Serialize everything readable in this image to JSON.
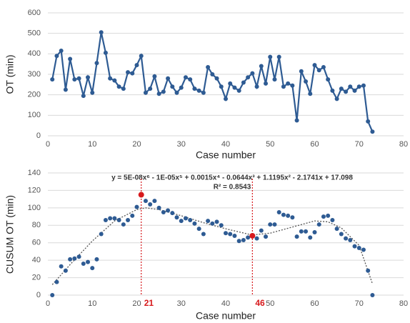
{
  "chart_data": [
    {
      "type": "line",
      "xlabel": "Case number",
      "ylabel": "OT (min)",
      "color": "#2e5b93",
      "grid": true,
      "xlim": [
        0,
        80
      ],
      "xticks": [
        0,
        10,
        20,
        30,
        40,
        50,
        60,
        70,
        80
      ],
      "ylim": [
        0,
        600
      ],
      "yticks": [
        0,
        100,
        200,
        300,
        400,
        500,
        600
      ],
      "x": [
        1,
        2,
        3,
        4,
        5,
        6,
        7,
        8,
        9,
        10,
        11,
        12,
        13,
        14,
        15,
        16,
        17,
        18,
        19,
        20,
        21,
        22,
        23,
        24,
        25,
        26,
        27,
        28,
        29,
        30,
        31,
        32,
        33,
        34,
        35,
        36,
        37,
        38,
        39,
        40,
        41,
        42,
        43,
        44,
        45,
        46,
        47,
        48,
        49,
        50,
        51,
        52,
        53,
        54,
        55,
        56,
        57,
        58,
        59,
        60,
        61,
        62,
        63,
        64,
        65,
        66,
        67,
        68,
        69,
        70,
        71,
        72,
        73
      ],
      "values": [
        275,
        390,
        415,
        225,
        375,
        275,
        280,
        195,
        285,
        210,
        355,
        505,
        405,
        280,
        270,
        240,
        230,
        310,
        305,
        345,
        390,
        210,
        230,
        290,
        205,
        215,
        280,
        240,
        210,
        235,
        285,
        275,
        230,
        220,
        210,
        335,
        300,
        280,
        240,
        180,
        255,
        235,
        220,
        260,
        285,
        305,
        240,
        340,
        255,
        385,
        275,
        385,
        240,
        255,
        245,
        75,
        315,
        265,
        205,
        345,
        320,
        335,
        275,
        220,
        180,
        230,
        215,
        240,
        220,
        240,
        245,
        70,
        20
      ]
    },
    {
      "type": "scatter",
      "xlabel": "Case number",
      "ylabel": "CUSUM OT (min)",
      "color": "#2e5b93",
      "grid": true,
      "xlim": [
        0,
        80
      ],
      "xticks": [
        0,
        10,
        20,
        30,
        40,
        50,
        60,
        70,
        80
      ],
      "ylim": [
        0,
        140
      ],
      "yticks": [
        0,
        20,
        40,
        60,
        80,
        100,
        120,
        140
      ],
      "x": [
        1,
        2,
        3,
        4,
        5,
        6,
        7,
        8,
        9,
        10,
        11,
        12,
        13,
        14,
        15,
        16,
        17,
        18,
        19,
        20,
        21,
        22,
        23,
        24,
        25,
        26,
        27,
        28,
        29,
        30,
        31,
        32,
        33,
        34,
        35,
        36,
        37,
        38,
        39,
        40,
        41,
        42,
        43,
        44,
        45,
        46,
        47,
        48,
        49,
        50,
        51,
        52,
        53,
        54,
        55,
        56,
        57,
        58,
        59,
        60,
        61,
        62,
        63,
        64,
        65,
        66,
        67,
        68,
        69,
        70,
        71,
        72,
        73
      ],
      "values": [
        0,
        15,
        33,
        28,
        41,
        42,
        44,
        36,
        38,
        31,
        41,
        70,
        86,
        88,
        88,
        86,
        81,
        86,
        91,
        101,
        115,
        108,
        104,
        108,
        100,
        95,
        97,
        94,
        89,
        85,
        88,
        86,
        82,
        76,
        70,
        85,
        82,
        84,
        80,
        71,
        70,
        68,
        62,
        63,
        66,
        68,
        65,
        74,
        67,
        81,
        81,
        95,
        92,
        91,
        89,
        67,
        73,
        73,
        66,
        72,
        81,
        90,
        91,
        86,
        76,
        70,
        65,
        63,
        56,
        54,
        52,
        28,
        0
      ],
      "trend": {
        "color": "#555555",
        "x": [
          1,
          5,
          10,
          15,
          20,
          22,
          25,
          30,
          35,
          40,
          45,
          46,
          50,
          55,
          60,
          63,
          66,
          70,
          73
        ],
        "values": [
          12,
          35,
          62,
          85,
          98,
          100,
          98,
          91,
          83,
          76,
          70,
          69,
          71,
          78,
          85,
          84,
          77,
          57,
          13
        ]
      },
      "equation": "y = 5E-08x⁶ - 1E-05x⁵ + 0.0015x⁴ - 0.0644x³ + 1.1195x² - 2.1741x + 17.098",
      "r_squared": "R² = 0.8543",
      "marker_color": "#d7191c",
      "markers": [
        21,
        46
      ]
    }
  ]
}
